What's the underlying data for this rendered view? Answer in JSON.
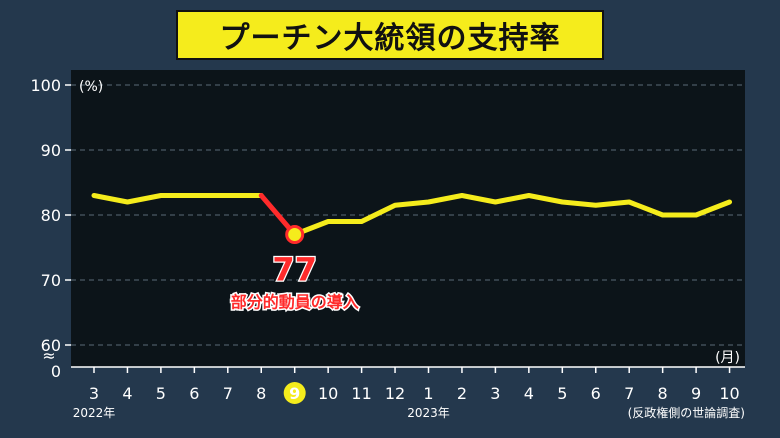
{
  "title": "プーチン大統領の支持率",
  "source": "(反政権側の世論調査)",
  "colors": {
    "background": "#24384d",
    "plot": "#0c1419",
    "line": "#f5ec1c",
    "highlight": "#ff2b2b"
  },
  "chart_data": {
    "type": "line",
    "title": "プーチン大統領の支持率",
    "ylabel": "(%)",
    "xlabel": "(月)",
    "ylim": [
      60,
      100
    ],
    "y_ticks": [
      100,
      90,
      80,
      70,
      60
    ],
    "y_zero_label": "0",
    "axis_break": "≈",
    "grid": true,
    "categories": [
      "3",
      "4",
      "5",
      "6",
      "7",
      "8",
      "9",
      "10",
      "11",
      "12",
      "1",
      "2",
      "3",
      "4",
      "5",
      "6",
      "7",
      "8",
      "9",
      "10"
    ],
    "year_labels": [
      {
        "label": "2022年",
        "index": 0
      },
      {
        "label": "2023年",
        "index": 10
      }
    ],
    "highlighted_category": "9",
    "series": [
      {
        "values": [
          83,
          82,
          83,
          83,
          83,
          83,
          77,
          79,
          79,
          81.5,
          82,
          83,
          82,
          83,
          82,
          81.5,
          82,
          80,
          80,
          82
        ]
      }
    ],
    "annotation": {
      "index": 6,
      "value": "77",
      "text": "部分的動員の導入"
    }
  }
}
